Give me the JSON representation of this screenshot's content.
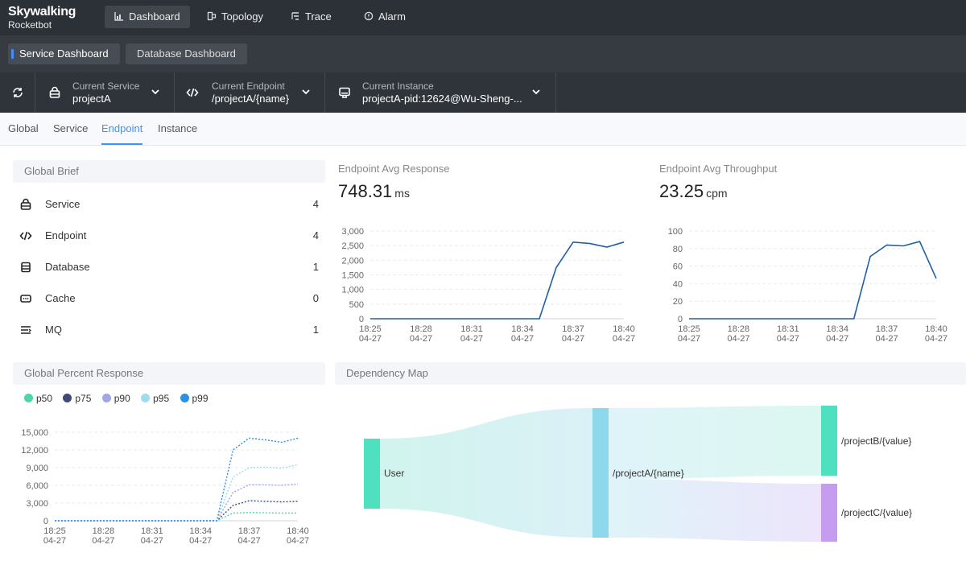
{
  "brand": {
    "name": "Skywalking",
    "sub": "Rocketbot"
  },
  "nav": [
    {
      "label": "Dashboard",
      "icon": "bar-chart-icon",
      "active": true
    },
    {
      "label": "Topology",
      "icon": "topology-icon"
    },
    {
      "label": "Trace",
      "icon": "trace-icon"
    },
    {
      "label": "Alarm",
      "icon": "alarm-icon"
    }
  ],
  "dashboards": [
    {
      "label": "Service Dashboard",
      "active": true
    },
    {
      "label": "Database Dashboard"
    }
  ],
  "selectors": {
    "service": {
      "label": "Current Service",
      "value": "projectA"
    },
    "endpoint": {
      "label": "Current Endpoint",
      "value": "/projectA/{name}"
    },
    "instance": {
      "label": "Current Instance",
      "value": "projectA-pid:12624@Wu-Sheng-..."
    }
  },
  "page_tabs": [
    "Global",
    "Service",
    "Endpoint",
    "Instance"
  ],
  "active_page_tab": "Endpoint",
  "global_brief": {
    "title": "Global Brief",
    "items": [
      {
        "name": "Service",
        "value": "4",
        "icon": "service-icon"
      },
      {
        "name": "Endpoint",
        "value": "4",
        "icon": "code-icon"
      },
      {
        "name": "Database",
        "value": "1",
        "icon": "database-icon"
      },
      {
        "name": "Cache",
        "value": "0",
        "icon": "cache-icon"
      },
      {
        "name": "MQ",
        "value": "1",
        "icon": "mq-icon"
      }
    ]
  },
  "avg_response": {
    "title": "Endpoint Avg Response",
    "value": "748.31",
    "unit": "ms"
  },
  "avg_throughput": {
    "title": "Endpoint Avg Throughput",
    "value": "23.25",
    "unit": "cpm"
  },
  "percent_response": {
    "title": "Global Percent Response"
  },
  "dependency_map": {
    "title": "Dependency Map"
  },
  "colors": {
    "line": "#1e5fa8",
    "p50": "#4fd6a8",
    "p75": "#3f4a7a",
    "p90": "#a0a6e8",
    "p95": "#9fdcf2",
    "p99": "#2f8fe0",
    "sankey_green": "#4fe0c0",
    "sankey_blue": "#8ed8ec",
    "sankey_purple": "#c69cf0"
  },
  "chart_data": [
    {
      "type": "line",
      "title": "Endpoint Avg Response",
      "x": [
        "18:25\n04-27",
        "18:26",
        "18:27",
        "18:28\n04-27",
        "18:29",
        "18:30",
        "18:31\n04-27",
        "18:32",
        "18:33",
        "18:34\n04-27",
        "18:35",
        "18:36",
        "18:37\n04-27",
        "18:38",
        "18:39",
        "18:40\n04-27"
      ],
      "x_ticks": [
        "18:25",
        "18:28",
        "18:31",
        "18:34",
        "18:37",
        "18:40"
      ],
      "x_tick_dates": "04-27",
      "series": [
        {
          "values": [
            0,
            0,
            0,
            0,
            0,
            0,
            0,
            0,
            0,
            0,
            0,
            1750,
            2620,
            2570,
            2450,
            2620
          ]
        }
      ],
      "ylim": [
        0,
        3000
      ],
      "y_ticks": [
        "0",
        "500",
        "1,000",
        "1,500",
        "2,000",
        "2,500",
        "3,000"
      ],
      "grid": true
    },
    {
      "type": "line",
      "title": "Endpoint Avg Throughput",
      "x_ticks": [
        "18:25",
        "18:28",
        "18:31",
        "18:34",
        "18:37",
        "18:40"
      ],
      "x_tick_dates": "04-27",
      "series": [
        {
          "values": [
            0,
            0,
            0,
            0,
            0,
            0,
            0,
            0,
            0,
            0,
            0,
            71,
            84,
            83,
            88,
            46
          ]
        }
      ],
      "ylim": [
        0,
        100
      ],
      "y_ticks": [
        "0",
        "20",
        "40",
        "60",
        "80",
        "100"
      ],
      "grid": true
    },
    {
      "type": "line",
      "title": "Global Percent Response",
      "x_ticks": [
        "18:25",
        "18:28",
        "18:31",
        "18:34",
        "18:37",
        "18:40"
      ],
      "x_tick_dates": "04-27",
      "series": [
        {
          "name": "p50",
          "values": [
            0,
            0,
            0,
            0,
            0,
            0,
            0,
            0,
            0,
            0,
            0,
            1300,
            1400,
            1350,
            1300,
            1300
          ]
        },
        {
          "name": "p75",
          "values": [
            0,
            0,
            0,
            0,
            0,
            0,
            0,
            0,
            0,
            0,
            0,
            2600,
            3400,
            3300,
            3200,
            3300
          ]
        },
        {
          "name": "p90",
          "values": [
            0,
            0,
            0,
            0,
            0,
            0,
            0,
            0,
            0,
            0,
            0,
            4800,
            6100,
            6100,
            6000,
            6200
          ]
        },
        {
          "name": "p95",
          "values": [
            0,
            0,
            0,
            0,
            0,
            0,
            0,
            0,
            0,
            0,
            0,
            7400,
            9000,
            9100,
            8900,
            9500
          ]
        },
        {
          "name": "p99",
          "values": [
            0,
            0,
            0,
            0,
            0,
            0,
            0,
            0,
            0,
            0,
            0,
            12000,
            14000,
            13700,
            13300,
            14000
          ]
        }
      ],
      "ylim": [
        0,
        15000
      ],
      "y_ticks": [
        "0",
        "3,000",
        "6,000",
        "9,000",
        "12,000",
        "15,000"
      ],
      "grid": true,
      "legend": "top-left"
    },
    {
      "type": "sankey",
      "title": "Dependency Map",
      "nodes": [
        "User",
        "/projectA/{name}",
        "/projectB/{value}",
        "/projectC/{value}"
      ],
      "links": [
        {
          "source": "User",
          "target": "/projectA/{name}"
        },
        {
          "source": "/projectA/{name}",
          "target": "/projectB/{value}"
        },
        {
          "source": "/projectA/{name}",
          "target": "/projectC/{value}"
        }
      ]
    }
  ]
}
